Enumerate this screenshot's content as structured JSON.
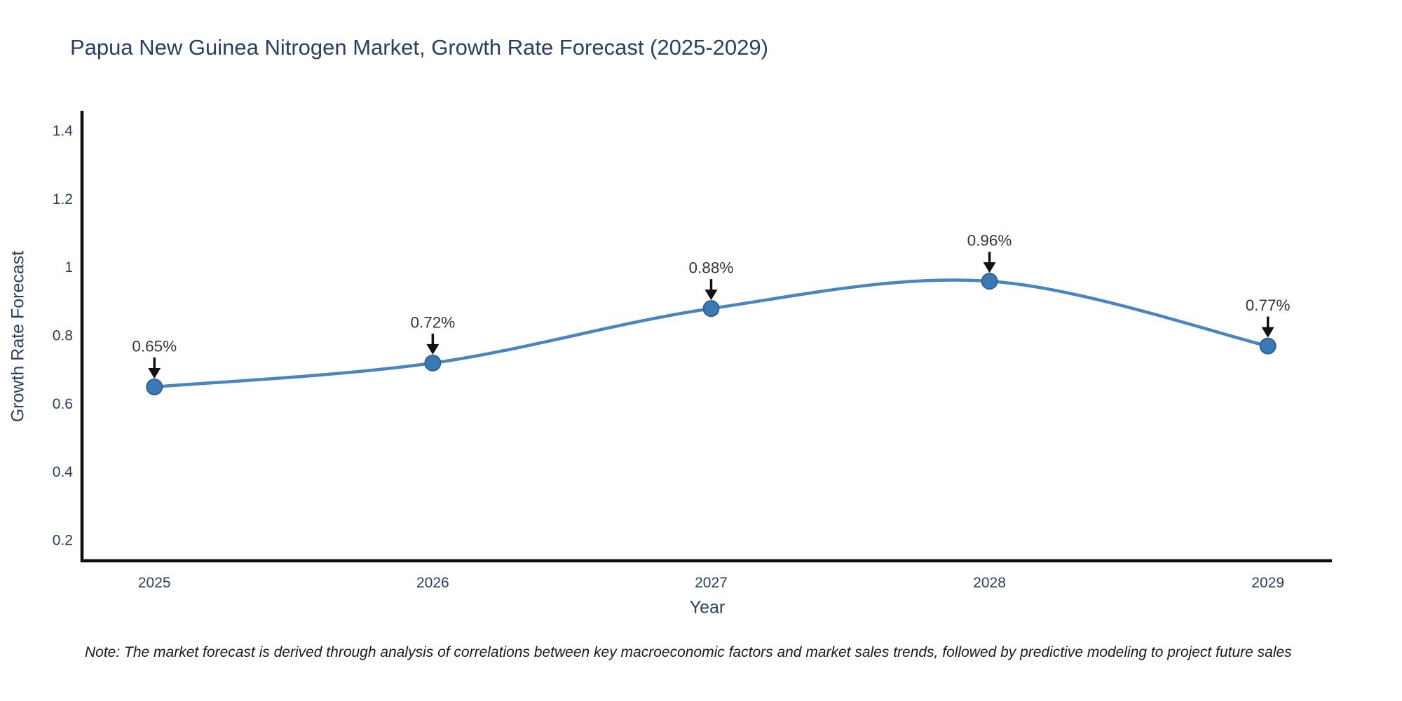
{
  "footnote": {
    "text": "Note: The market forecast is derived through analysis of correlations between key macroeconomic factors and market sales trends, followed by predictive modeling to project future sales"
  },
  "chart_data": {
    "type": "line",
    "line_shape": "spline",
    "title": "Papua New Guinea Nitrogen Market, Growth Rate Forecast (2025-2029)",
    "xlabel": "Year",
    "ylabel": "Growth Rate Forecast",
    "x": [
      2025,
      2026,
      2027,
      2028,
      2029
    ],
    "series": [
      {
        "name": "Growth Rate Forecast",
        "values": [
          0.65,
          0.72,
          0.88,
          0.96,
          0.77
        ]
      }
    ],
    "point_labels": [
      "0.65%",
      "0.72%",
      "0.88%",
      "0.96%",
      "0.77%"
    ],
    "xtick_labels": [
      "2025",
      "2026",
      "2027",
      "2028",
      "2029"
    ],
    "yticks": [
      0.2,
      0.4,
      0.6,
      0.8,
      1,
      1.2,
      1.4
    ],
    "ytick_labels": [
      "0.2",
      "0.4",
      "0.6",
      "0.8",
      "1",
      "1.2",
      "1.4"
    ],
    "xlim": [
      2024.74,
      2029.23
    ],
    "ylim": [
      0.14,
      1.46
    ],
    "grid": false,
    "legend": "none",
    "colors": {
      "background": "#ffffff",
      "title_text": "#2a3f5f",
      "tick_text": "#2a3f5f",
      "axis_line": "#0d0d0d",
      "series_line": "#4a85bd",
      "marker_fill": "#3b79b5",
      "marker_edge": "#2d6196",
      "annotation_text": "#31353c",
      "annotation_arrow": "#111111"
    }
  }
}
